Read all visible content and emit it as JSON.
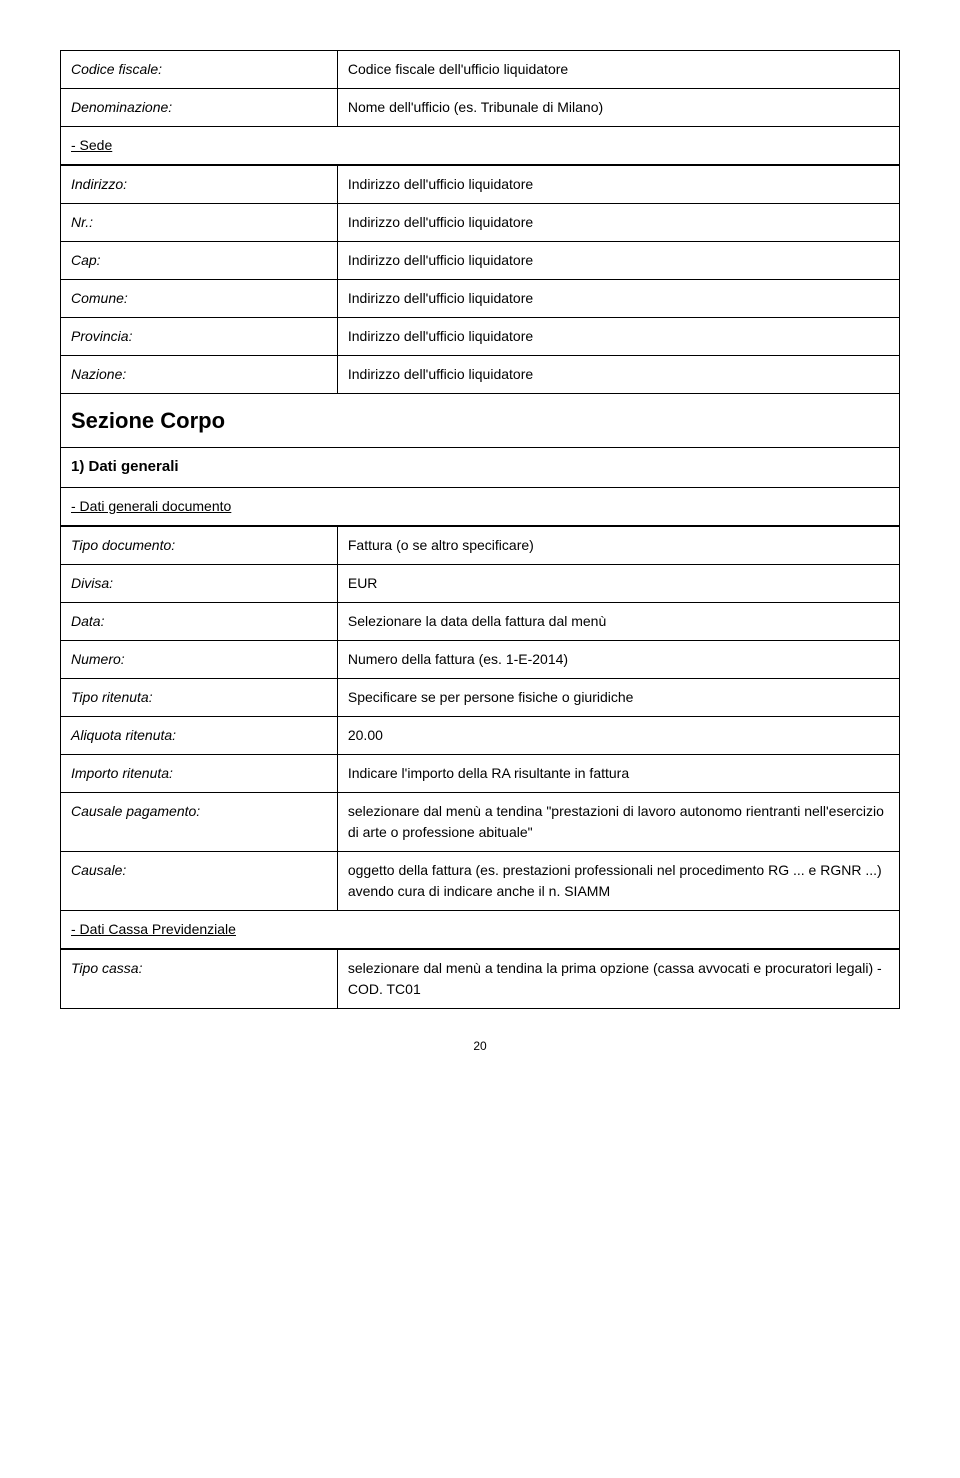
{
  "section1": {
    "rows": [
      {
        "label": "Codice fiscale:",
        "value": "Codice fiscale dell'ufficio liquidatore"
      },
      {
        "label": "Denominazione:",
        "value": "Nome dell'ufficio (es. Tribunale di Milano)"
      }
    ]
  },
  "sede": {
    "title": "- Sede",
    "rows": [
      {
        "label": "Indirizzo:",
        "value": "Indirizzo dell'ufficio liquidatore"
      },
      {
        "label": "Nr.:",
        "value": "Indirizzo dell'ufficio liquidatore"
      },
      {
        "label": "Cap:",
        "value": "Indirizzo dell'ufficio liquidatore"
      },
      {
        "label": "Comune:",
        "value": "Indirizzo dell'ufficio liquidatore"
      },
      {
        "label": "Provincia:",
        "value": "Indirizzo dell'ufficio liquidatore"
      },
      {
        "label": "Nazione:",
        "value": "Indirizzo dell'ufficio liquidatore"
      }
    ]
  },
  "sezione_corpo": {
    "title": "Sezione Corpo",
    "sub1": {
      "title": "1) Dati generali",
      "group_label": "- Dati generali documento",
      "rows": [
        {
          "label": "Tipo documento:",
          "value": "Fattura (o se altro specificare)"
        },
        {
          "label": "Divisa:",
          "value": "EUR"
        },
        {
          "label": "Data:",
          "value": "Selezionare la data della fattura dal menù"
        },
        {
          "label": "Numero:",
          "value": "Numero della fattura (es. 1-E-2014)"
        },
        {
          "label": "Tipo ritenuta:",
          "value": "Specificare se per persone fisiche o giuridiche"
        },
        {
          "label": "Aliquota ritenuta:",
          "value": "20.00"
        },
        {
          "label": "Importo ritenuta:",
          "value": "Indicare l'importo della RA risultante in fattura"
        },
        {
          "label": "Causale pagamento:",
          "value": "selezionare dal menù a tendina \"prestazioni di lavoro autonomo rientranti nell'esercizio di arte o professione abituale\""
        },
        {
          "label": "Causale:",
          "value": "oggetto della fattura (es. prestazioni professionali nel procedimento RG ... e RGNR ...) avendo cura di indicare anche il n. SIAMM"
        }
      ]
    },
    "sub2": {
      "group_label": "- Dati Cassa Previdenziale",
      "rows": [
        {
          "label": "Tipo cassa:",
          "value": "selezionare dal menù a tendina la prima opzione (cassa avvocati e procuratori legali) - COD. TC01"
        }
      ]
    }
  },
  "page_number": "20"
}
